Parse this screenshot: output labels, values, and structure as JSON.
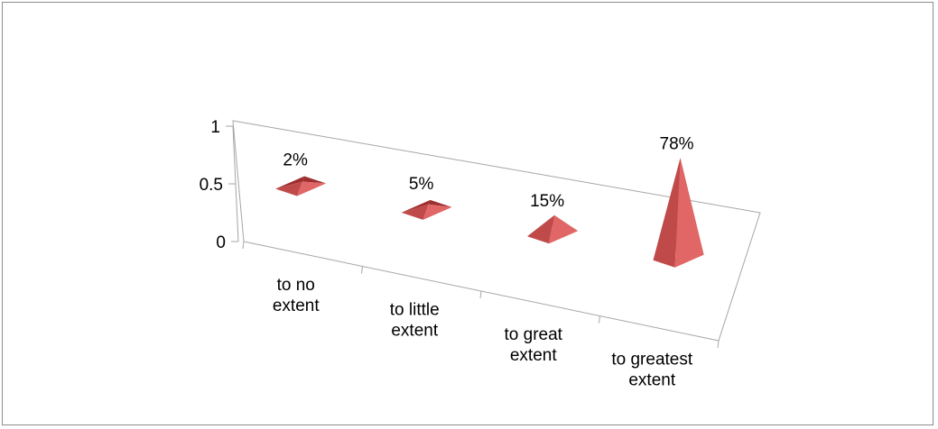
{
  "chart_data": {
    "type": "bar",
    "style": "3d-pyramid",
    "categories": [
      [
        "to no",
        "extent"
      ],
      [
        "to little",
        "extent"
      ],
      [
        "to great",
        "extent"
      ],
      [
        "to greatest",
        "extent"
      ]
    ],
    "values": [
      0.02,
      0.05,
      0.15,
      0.78
    ],
    "data_labels": [
      "2%",
      "5%",
      "15%",
      "78%"
    ],
    "y_ticks": [
      "0",
      "0.5",
      "1"
    ],
    "ylim": [
      0,
      1
    ],
    "grid": false,
    "legend": "none",
    "colors": {
      "face_light": "#e06766",
      "face_dark": "#9e2f2f",
      "face_mid": "#c04a4a",
      "axis": "#a6a6a6",
      "frame": "#8c8c8c"
    }
  }
}
